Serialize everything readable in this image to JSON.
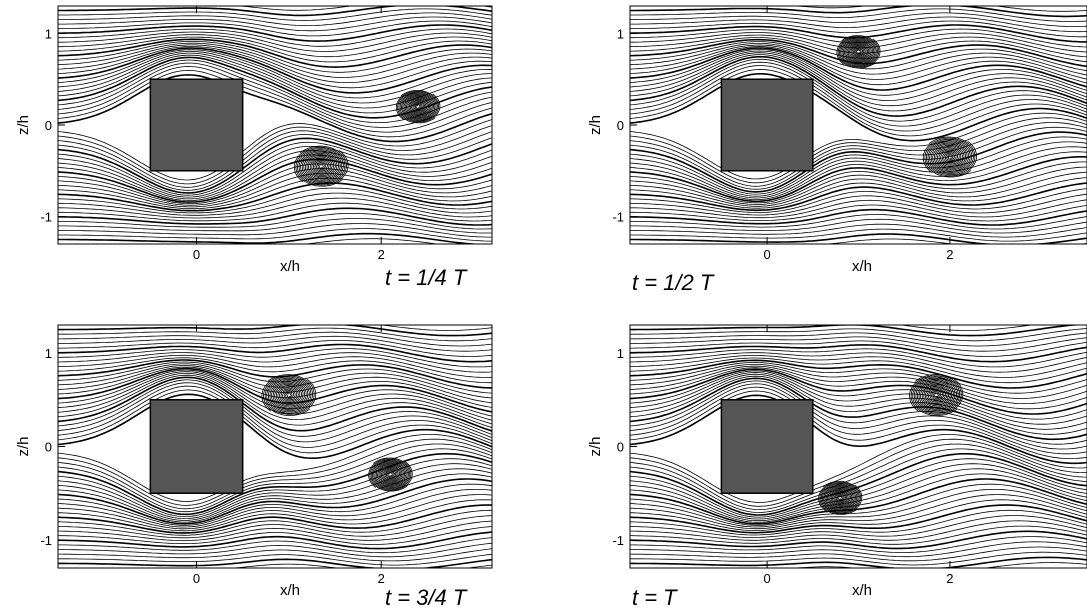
{
  "chart_data": [
    {
      "type": "streamline",
      "xlabel": "x/h",
      "ylabel": "z/h",
      "xlim": [
        -1.5,
        3.2
      ],
      "ylim": [
        -1.3,
        1.3
      ],
      "xticks": [
        0,
        2
      ],
      "yticks": [
        -1,
        0,
        1
      ],
      "annotation": "t = 1/4 T"
    },
    {
      "type": "streamline",
      "xlabel": "x/h",
      "ylabel": "z/h",
      "xlim": [
        -1.5,
        3.5
      ],
      "ylim": [
        -1.3,
        1.3
      ],
      "xticks": [
        0,
        2
      ],
      "yticks": [
        -1,
        0,
        1
      ],
      "annotation": "t = 1/2 T"
    },
    {
      "type": "streamline",
      "xlabel": "x/h",
      "ylabel": "z/h",
      "xlim": [
        -1.5,
        3.2
      ],
      "ylim": [
        -1.3,
        1.3
      ],
      "xticks": [
        0,
        2
      ],
      "yticks": [
        -1,
        0,
        1
      ],
      "annotation": "t = 3/4 T"
    },
    {
      "type": "streamline",
      "xlabel": "x/h",
      "ylabel": "z/h",
      "xlim": [
        -1.5,
        3.5
      ],
      "ylim": [
        -1.3,
        1.3
      ],
      "xticks": [
        0,
        2
      ],
      "yticks": [
        -1,
        0,
        1
      ],
      "annotation": "t = T"
    }
  ]
}
